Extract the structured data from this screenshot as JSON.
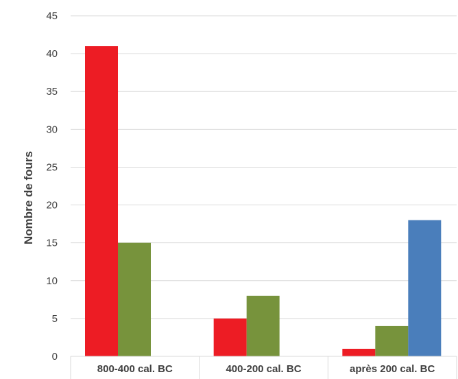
{
  "chart_data": {
    "type": "bar",
    "title": "",
    "xlabel": "",
    "ylabel": "Nombre de fours",
    "ylim": [
      0,
      45
    ],
    "yticks": [
      0,
      5,
      10,
      15,
      20,
      25,
      30,
      35,
      40,
      45
    ],
    "grid": true,
    "legend": "none",
    "categories": [
      "800-400 cal. BC",
      "400-200 cal. BC",
      "après 200 cal. BC"
    ],
    "series": [
      {
        "color": "#ed1c24",
        "values": [
          41,
          5,
          1
        ]
      },
      {
        "color": "#77933c",
        "values": [
          15,
          8,
          4
        ]
      },
      {
        "color": "#4a7ebb",
        "values": [
          0,
          0,
          18
        ]
      }
    ]
  }
}
